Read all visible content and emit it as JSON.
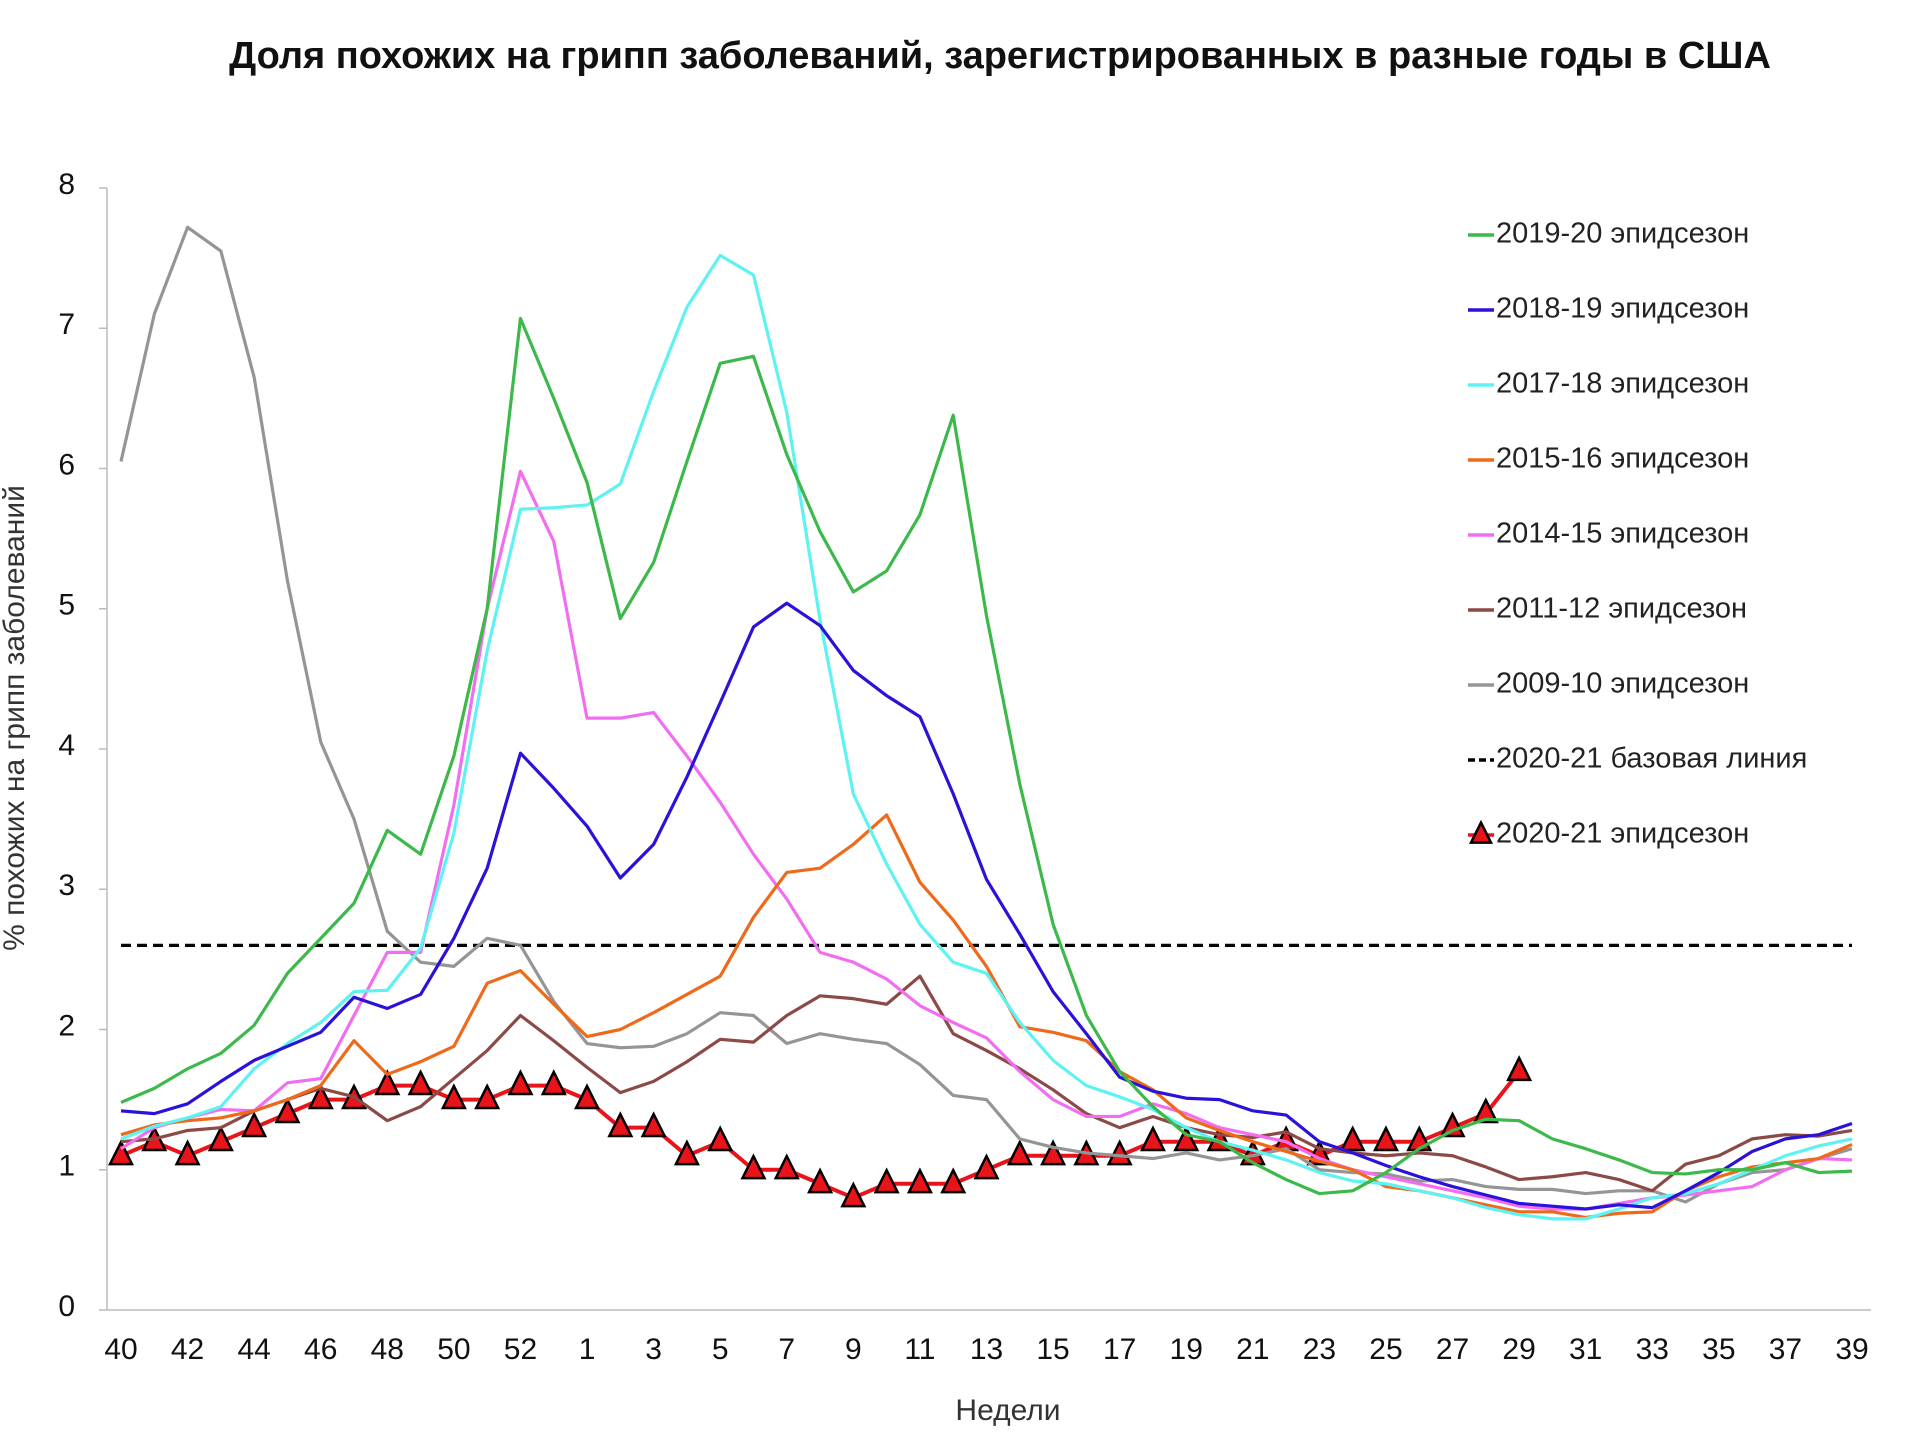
{
  "chart_data": {
    "type": "line",
    "title": "Доля похожих на грипп заболеваний, зарегистрированных в разные годы в США",
    "x_label": "Недели",
    "y_label": "% похожих на грипп заболеваний",
    "categories": [
      "40",
      null,
      "42",
      null,
      "44",
      null,
      "46",
      null,
      "48",
      null,
      "50",
      null,
      "52",
      null,
      "1",
      null,
      "3",
      null,
      "5",
      null,
      "7",
      null,
      "9",
      null,
      "11",
      null,
      "13",
      null,
      "15",
      null,
      "17",
      null,
      "19",
      null,
      "21",
      null,
      "23",
      null,
      "25",
      null,
      "27",
      null,
      "29",
      null,
      "31",
      null,
      "33",
      null,
      "35",
      null,
      "37",
      null,
      "39"
    ],
    "ylim": [
      0,
      8
    ],
    "yticks": [
      0,
      1,
      2,
      3,
      4,
      5,
      6,
      7,
      8
    ],
    "grid": false,
    "legend": "right",
    "series": [
      {
        "name": "2019-20 эпидсезон",
        "color": "#3cb94a",
        "values": [
          1.48,
          1.58,
          1.72,
          1.83,
          2.03,
          2.4,
          2.65,
          2.9,
          3.42,
          3.25,
          3.95,
          5.0,
          7.07,
          6.5,
          5.9,
          4.93,
          5.33,
          6.05,
          6.75,
          6.8,
          6.1,
          5.55,
          5.12,
          5.27,
          5.67,
          6.38,
          4.95,
          3.75,
          2.75,
          2.1,
          1.7,
          1.45,
          1.25,
          1.2,
          1.05,
          0.93,
          0.83,
          0.85,
          0.98,
          1.15,
          1.28,
          1.36,
          1.35,
          1.22,
          1.15,
          1.07,
          0.98,
          0.97,
          1.0,
          1.0,
          1.05,
          0.98,
          0.99
        ]
      },
      {
        "name": "2018-19 эпидсезон",
        "color": "#2a12d8",
        "values": [
          1.42,
          1.4,
          1.47,
          1.63,
          1.78,
          1.88,
          1.98,
          2.23,
          2.15,
          2.25,
          2.65,
          3.15,
          3.97,
          3.72,
          3.45,
          3.08,
          3.32,
          3.8,
          4.33,
          4.87,
          5.04,
          4.88,
          4.56,
          4.38,
          4.23,
          3.68,
          3.07,
          2.68,
          2.27,
          1.97,
          1.66,
          1.56,
          1.51,
          1.5,
          1.42,
          1.39,
          1.2,
          1.12,
          1.03,
          0.95,
          0.88,
          0.82,
          0.76,
          0.74,
          0.72,
          0.75,
          0.73,
          0.85,
          0.98,
          1.13,
          1.22,
          1.25,
          1.33
        ]
      },
      {
        "name": "2017-18 эпидсезон",
        "color": "#5ef2f2",
        "values": [
          1.22,
          1.31,
          1.37,
          1.45,
          1.72,
          1.9,
          2.05,
          2.27,
          2.28,
          2.58,
          3.4,
          4.7,
          5.71,
          5.72,
          5.74,
          5.89,
          6.55,
          7.15,
          7.52,
          7.38,
          6.4,
          4.92,
          3.68,
          3.18,
          2.75,
          2.48,
          2.4,
          2.05,
          1.78,
          1.6,
          1.52,
          1.43,
          1.3,
          1.2,
          1.14,
          1.07,
          0.98,
          0.92,
          0.9,
          0.85,
          0.8,
          0.73,
          0.68,
          0.65,
          0.65,
          0.72,
          0.8,
          0.83,
          0.9,
          1.0,
          1.1,
          1.17,
          1.22
        ]
      },
      {
        "name": "2015-16 эпидсезон",
        "color": "#ee6a1a",
        "values": [
          1.25,
          1.32,
          1.35,
          1.37,
          1.42,
          1.5,
          1.6,
          1.92,
          1.68,
          1.77,
          1.88,
          2.33,
          2.42,
          2.18,
          1.95,
          2.0,
          2.12,
          2.25,
          2.38,
          2.8,
          3.12,
          3.15,
          3.32,
          3.53,
          3.05,
          2.78,
          2.45,
          2.02,
          1.98,
          1.92,
          1.7,
          1.57,
          1.37,
          1.28,
          1.2,
          1.13,
          1.06,
          1.0,
          0.88,
          0.85,
          0.8,
          0.75,
          0.7,
          0.7,
          0.66,
          0.69,
          0.7,
          0.85,
          0.95,
          1.02,
          1.05,
          1.08,
          1.18
        ]
      },
      {
        "name": "2014-15 эпидсезон",
        "color": "#f26ef0",
        "values": [
          1.15,
          1.3,
          1.37,
          1.43,
          1.42,
          1.62,
          1.65,
          2.1,
          2.55,
          2.55,
          3.6,
          5.0,
          5.98,
          5.48,
          4.22,
          4.22,
          4.26,
          3.95,
          3.62,
          3.25,
          2.93,
          2.55,
          2.48,
          2.36,
          2.17,
          2.05,
          1.94,
          1.7,
          1.5,
          1.38,
          1.38,
          1.47,
          1.4,
          1.3,
          1.25,
          1.2,
          1.08,
          1.0,
          0.95,
          0.9,
          0.85,
          0.8,
          0.74,
          0.72,
          0.72,
          0.76,
          0.8,
          0.82,
          0.85,
          0.88,
          1.0,
          1.08,
          1.07
        ]
      },
      {
        "name": "2011-12 эпидсезон",
        "color": "#8b4a46",
        "values": [
          1.2,
          1.22,
          1.28,
          1.3,
          1.42,
          1.5,
          1.58,
          1.52,
          1.35,
          1.45,
          1.65,
          1.85,
          2.1,
          1.92,
          1.73,
          1.55,
          1.63,
          1.77,
          1.93,
          1.91,
          2.1,
          2.24,
          2.22,
          2.18,
          2.38,
          1.97,
          1.85,
          1.72,
          1.57,
          1.4,
          1.3,
          1.38,
          1.3,
          1.25,
          1.23,
          1.27,
          1.15,
          1.12,
          1.1,
          1.12,
          1.1,
          1.02,
          0.93,
          0.95,
          0.98,
          0.93,
          0.85,
          1.04,
          1.1,
          1.22,
          1.25,
          1.24,
          1.28
        ]
      },
      {
        "name": "2009-10 эпидсезон",
        "color": "#959595",
        "values": [
          6.05,
          7.1,
          7.72,
          7.55,
          6.65,
          5.2,
          4.05,
          3.5,
          2.7,
          2.48,
          2.45,
          2.65,
          2.6,
          2.2,
          1.9,
          1.87,
          1.88,
          1.97,
          2.12,
          2.1,
          1.9,
          1.97,
          1.93,
          1.9,
          1.75,
          1.53,
          1.5,
          1.22,
          1.16,
          1.12,
          1.1,
          1.08,
          1.12,
          1.07,
          1.1,
          1.15,
          1.0,
          0.98,
          0.97,
          0.92,
          0.93,
          0.88,
          0.86,
          0.86,
          0.83,
          0.85,
          0.85,
          0.77,
          0.9,
          0.98,
          1.0,
          1.08,
          1.15
        ]
      },
      {
        "name": "2020-21 базовая линия",
        "color": "#000000",
        "dashed": true,
        "values": [
          2.6,
          2.6,
          2.6,
          2.6,
          2.6,
          2.6,
          2.6,
          2.6,
          2.6,
          2.6,
          2.6,
          2.6,
          2.6,
          2.6,
          2.6,
          2.6,
          2.6,
          2.6,
          2.6,
          2.6,
          2.6,
          2.6,
          2.6,
          2.6,
          2.6,
          2.6,
          2.6,
          2.6,
          2.6,
          2.6,
          2.6,
          2.6,
          2.6,
          2.6,
          2.6,
          2.6,
          2.6,
          2.6,
          2.6,
          2.6,
          2.6,
          2.6,
          2.6,
          2.6,
          2.6,
          2.6,
          2.6,
          2.6,
          2.6,
          2.6,
          2.6,
          2.6,
          2.6
        ]
      },
      {
        "name": "2020-21 эпидсезон",
        "color": "#e8141a",
        "marker": "triangle",
        "marker_edge": "#000000",
        "values": [
          1.1,
          1.2,
          1.1,
          1.2,
          1.3,
          1.4,
          1.5,
          1.5,
          1.6,
          1.6,
          1.5,
          1.5,
          1.6,
          1.6,
          1.5,
          1.3,
          1.3,
          1.1,
          1.2,
          1.0,
          1.0,
          0.9,
          0.8,
          0.9,
          0.9,
          0.9,
          1.0,
          1.1,
          1.1,
          1.1,
          1.1,
          1.2,
          1.2,
          1.2,
          1.1,
          1.2,
          1.1,
          1.2,
          1.2,
          1.2,
          1.3,
          1.4,
          1.7,
          null,
          null,
          null,
          null,
          null,
          null,
          null,
          null,
          null,
          null
        ]
      }
    ]
  }
}
